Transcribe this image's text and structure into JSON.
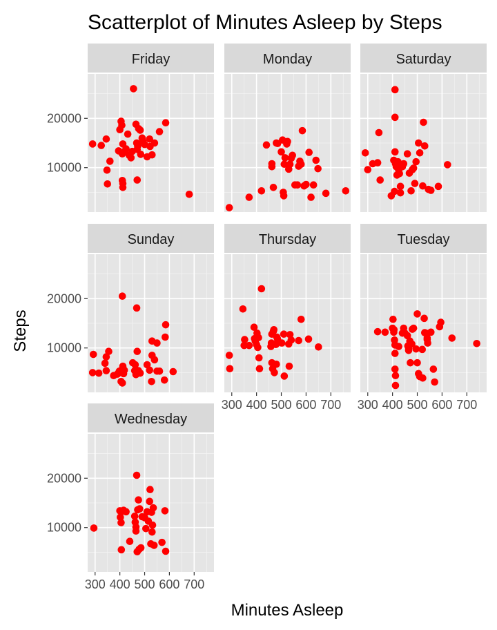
{
  "chart_data": {
    "type": "scatter",
    "title": "Scatterplot of Minutes Asleep by Steps",
    "xlabel": "Minutes Asleep",
    "ylabel": "Steps",
    "xlim": [
      270,
      780
    ],
    "ylim": [
      1000,
      29000
    ],
    "x_ticks": [
      300,
      400,
      500,
      600,
      700
    ],
    "y_ticks": [
      10000,
      20000
    ],
    "grid": true,
    "point_color": "#ff0000",
    "panel_bg": "#e5e5e5",
    "strip_bg": "#d9d9d9",
    "facets": [
      {
        "name": "Friday",
        "points": [
          [
            290,
            14800
          ],
          [
            325,
            14500
          ],
          [
            345,
            15800
          ],
          [
            348,
            9500
          ],
          [
            350,
            6700
          ],
          [
            360,
            11300
          ],
          [
            395,
            13400
          ],
          [
            400,
            17700
          ],
          [
            405,
            19400
          ],
          [
            408,
            18600
          ],
          [
            410,
            12800
          ],
          [
            412,
            14800
          ],
          [
            420,
            13300
          ],
          [
            425,
            13800
          ],
          [
            432,
            16800
          ],
          [
            438,
            12500
          ],
          [
            445,
            12000
          ],
          [
            450,
            13300
          ],
          [
            455,
            26000
          ],
          [
            465,
            18800
          ],
          [
            468,
            15000
          ],
          [
            470,
            13700
          ],
          [
            472,
            14400
          ],
          [
            476,
            17900
          ],
          [
            482,
            17600
          ],
          [
            484,
            12700
          ],
          [
            490,
            16000
          ],
          [
            493,
            15300
          ],
          [
            500,
            14700
          ],
          [
            510,
            12200
          ],
          [
            520,
            15800
          ],
          [
            522,
            14300
          ],
          [
            530,
            12600
          ],
          [
            540,
            15000
          ],
          [
            560,
            17300
          ],
          [
            585,
            19100
          ],
          [
            680,
            4600
          ],
          [
            410,
            7400
          ],
          [
            412,
            6800
          ],
          [
            412,
            6000
          ],
          [
            470,
            7500
          ]
        ]
      },
      {
        "name": "Monday",
        "points": [
          [
            290,
            1900
          ],
          [
            370,
            4000
          ],
          [
            420,
            5300
          ],
          [
            440,
            14600
          ],
          [
            462,
            10800
          ],
          [
            462,
            10200
          ],
          [
            468,
            6000
          ],
          [
            480,
            15000
          ],
          [
            485,
            14900
          ],
          [
            500,
            13200
          ],
          [
            505,
            15600
          ],
          [
            508,
            5000
          ],
          [
            510,
            4300
          ],
          [
            512,
            10700
          ],
          [
            515,
            12000
          ],
          [
            522,
            14800
          ],
          [
            525,
            15300
          ],
          [
            530,
            9700
          ],
          [
            535,
            10700
          ],
          [
            540,
            11900
          ],
          [
            545,
            12500
          ],
          [
            555,
            6500
          ],
          [
            565,
            6500
          ],
          [
            570,
            10300
          ],
          [
            575,
            11300
          ],
          [
            580,
            10700
          ],
          [
            585,
            17500
          ],
          [
            592,
            6300
          ],
          [
            600,
            6600
          ],
          [
            612,
            13100
          ],
          [
            620,
            4000
          ],
          [
            630,
            6500
          ],
          [
            640,
            11500
          ],
          [
            648,
            9800
          ],
          [
            680,
            4800
          ],
          [
            760,
            5300
          ]
        ]
      },
      {
        "name": "Saturday",
        "points": [
          [
            290,
            13000
          ],
          [
            300,
            9600
          ],
          [
            320,
            10800
          ],
          [
            340,
            11000
          ],
          [
            345,
            17100
          ],
          [
            350,
            7500
          ],
          [
            395,
            4300
          ],
          [
            405,
            11500
          ],
          [
            408,
            5200
          ],
          [
            410,
            25800
          ],
          [
            410,
            20200
          ],
          [
            410,
            13200
          ],
          [
            412,
            10800
          ],
          [
            415,
            10200
          ],
          [
            418,
            8500
          ],
          [
            422,
            11200
          ],
          [
            425,
            9500
          ],
          [
            428,
            8800
          ],
          [
            432,
            6200
          ],
          [
            432,
            4900
          ],
          [
            440,
            10200
          ],
          [
            445,
            10800
          ],
          [
            460,
            12800
          ],
          [
            468,
            8900
          ],
          [
            475,
            5300
          ],
          [
            480,
            9600
          ],
          [
            485,
            9900
          ],
          [
            490,
            6800
          ],
          [
            495,
            11200
          ],
          [
            505,
            15000
          ],
          [
            510,
            13000
          ],
          [
            522,
            6300
          ],
          [
            525,
            19200
          ],
          [
            530,
            14400
          ],
          [
            545,
            5600
          ],
          [
            555,
            5400
          ],
          [
            585,
            6200
          ],
          [
            622,
            10600
          ]
        ]
      },
      {
        "name": "Sunday",
        "points": [
          [
            290,
            5000
          ],
          [
            293,
            8700
          ],
          [
            315,
            4900
          ],
          [
            340,
            6900
          ],
          [
            345,
            8200
          ],
          [
            345,
            5400
          ],
          [
            355,
            9300
          ],
          [
            375,
            4400
          ],
          [
            390,
            4700
          ],
          [
            392,
            4800
          ],
          [
            398,
            5300
          ],
          [
            405,
            3200
          ],
          [
            408,
            5600
          ],
          [
            410,
            20500
          ],
          [
            410,
            2900
          ],
          [
            412,
            6300
          ],
          [
            415,
            4800
          ],
          [
            418,
            5500
          ],
          [
            452,
            7000
          ],
          [
            460,
            5400
          ],
          [
            462,
            6600
          ],
          [
            465,
            4600
          ],
          [
            468,
            18100
          ],
          [
            470,
            9300
          ],
          [
            475,
            5400
          ],
          [
            482,
            4900
          ],
          [
            510,
            6600
          ],
          [
            520,
            5500
          ],
          [
            528,
            3200
          ],
          [
            530,
            11400
          ],
          [
            530,
            8500
          ],
          [
            540,
            7600
          ],
          [
            550,
            11000
          ],
          [
            550,
            5300
          ],
          [
            560,
            5300
          ],
          [
            580,
            3500
          ],
          [
            583,
            12200
          ],
          [
            585,
            14700
          ],
          [
            615,
            5200
          ]
        ]
      },
      {
        "name": "Thursday",
        "points": [
          [
            290,
            8500
          ],
          [
            292,
            5800
          ],
          [
            345,
            17900
          ],
          [
            350,
            10500
          ],
          [
            352,
            11700
          ],
          [
            370,
            10500
          ],
          [
            390,
            14200
          ],
          [
            392,
            11900
          ],
          [
            395,
            11400
          ],
          [
            400,
            10700
          ],
          [
            402,
            13000
          ],
          [
            405,
            10100
          ],
          [
            408,
            12100
          ],
          [
            410,
            8000
          ],
          [
            412,
            5800
          ],
          [
            420,
            22000
          ],
          [
            458,
            10300
          ],
          [
            460,
            11000
          ],
          [
            462,
            7000
          ],
          [
            462,
            12800
          ],
          [
            465,
            5800
          ],
          [
            468,
            13400
          ],
          [
            470,
            13700
          ],
          [
            472,
            5000
          ],
          [
            478,
            10700
          ],
          [
            480,
            6700
          ],
          [
            482,
            12200
          ],
          [
            483,
            11000
          ],
          [
            485,
            11800
          ],
          [
            502,
            11000
          ],
          [
            510,
            12800
          ],
          [
            512,
            4300
          ],
          [
            530,
            10800
          ],
          [
            532,
            6300
          ],
          [
            535,
            12700
          ],
          [
            540,
            11600
          ],
          [
            570,
            11500
          ],
          [
            580,
            15800
          ],
          [
            610,
            11800
          ],
          [
            650,
            10200
          ]
        ]
      },
      {
        "name": "Tuesday",
        "points": [
          [
            340,
            13300
          ],
          [
            370,
            13200
          ],
          [
            400,
            14000
          ],
          [
            402,
            15800
          ],
          [
            405,
            13200
          ],
          [
            406,
            13700
          ],
          [
            408,
            11600
          ],
          [
            410,
            10600
          ],
          [
            410,
            8900
          ],
          [
            410,
            5700
          ],
          [
            412,
            4400
          ],
          [
            412,
            2400
          ],
          [
            425,
            10300
          ],
          [
            440,
            13000
          ],
          [
            445,
            14000
          ],
          [
            450,
            13000
          ],
          [
            460,
            12500
          ],
          [
            462,
            10400
          ],
          [
            465,
            9900
          ],
          [
            465,
            9500
          ],
          [
            470,
            11400
          ],
          [
            472,
            7000
          ],
          [
            478,
            10800
          ],
          [
            480,
            13800
          ],
          [
            485,
            14000
          ],
          [
            495,
            9800
          ],
          [
            500,
            16900
          ],
          [
            500,
            7000
          ],
          [
            505,
            4800
          ],
          [
            510,
            4200
          ],
          [
            520,
            9700
          ],
          [
            522,
            3900
          ],
          [
            528,
            16000
          ],
          [
            530,
            13100
          ],
          [
            535,
            13000
          ],
          [
            540,
            12000
          ],
          [
            540,
            11700
          ],
          [
            542,
            11000
          ],
          [
            555,
            13200
          ],
          [
            565,
            5700
          ],
          [
            570,
            3100
          ],
          [
            590,
            14300
          ],
          [
            595,
            15200
          ],
          [
            640,
            12000
          ],
          [
            740,
            10900
          ]
        ]
      },
      {
        "name": "Wednesday",
        "points": [
          [
            295,
            9900
          ],
          [
            400,
            13400
          ],
          [
            402,
            12100
          ],
          [
            405,
            11000
          ],
          [
            406,
            5500
          ],
          [
            410,
            13300
          ],
          [
            415,
            13500
          ],
          [
            425,
            13200
          ],
          [
            440,
            7200
          ],
          [
            460,
            12300
          ],
          [
            462,
            11100
          ],
          [
            465,
            10100
          ],
          [
            465,
            9300
          ],
          [
            468,
            20600
          ],
          [
            470,
            5100
          ],
          [
            472,
            13600
          ],
          [
            475,
            15600
          ],
          [
            478,
            5600
          ],
          [
            480,
            13800
          ],
          [
            485,
            5900
          ],
          [
            490,
            12200
          ],
          [
            500,
            12000
          ],
          [
            505,
            9800
          ],
          [
            510,
            13200
          ],
          [
            515,
            11300
          ],
          [
            520,
            15300
          ],
          [
            522,
            17700
          ],
          [
            525,
            6700
          ],
          [
            528,
            13100
          ],
          [
            530,
            9100
          ],
          [
            532,
            10500
          ],
          [
            535,
            14000
          ],
          [
            538,
            6400
          ],
          [
            570,
            7000
          ],
          [
            582,
            13400
          ],
          [
            585,
            5200
          ]
        ]
      }
    ]
  }
}
